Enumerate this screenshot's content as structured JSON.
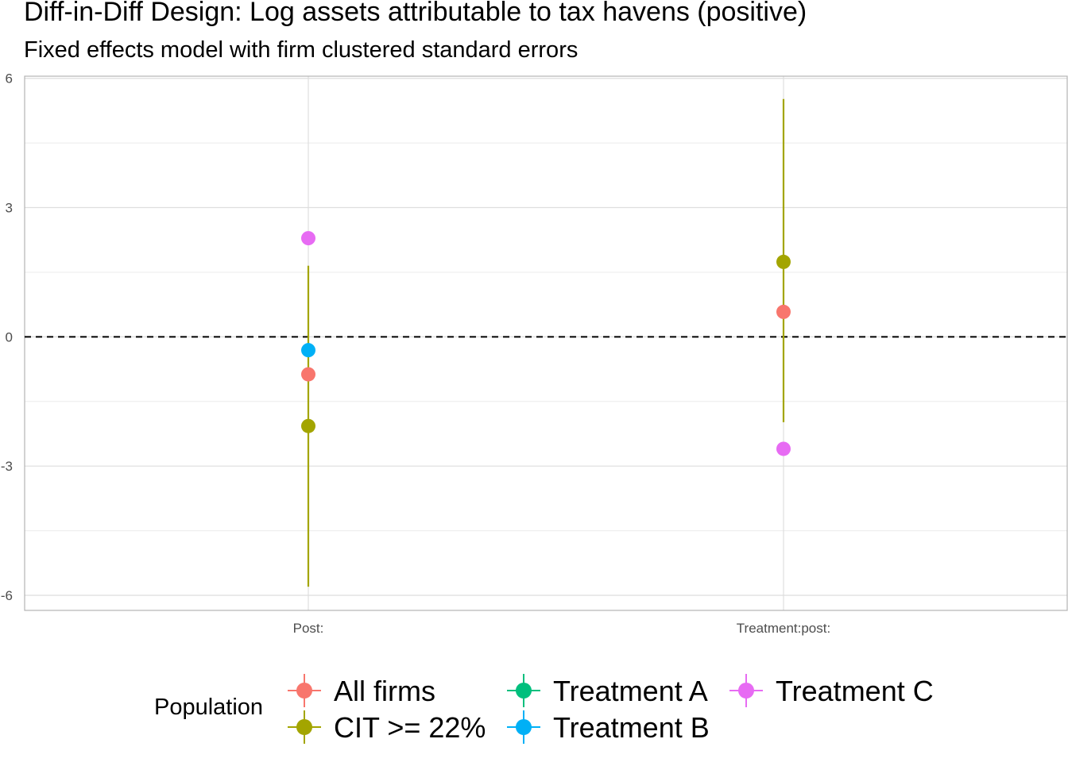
{
  "chart_data": {
    "type": "scatter",
    "title": "Diff-in-Diff Design: Log assets attributable to tax havens (positive)",
    "subtitle": "Fixed effects model with firm clustered standard errors",
    "xlabel": "",
    "ylabel": "",
    "categories": [
      "Post:",
      "Treatment:post:"
    ],
    "ylim": [
      -6.35,
      6.05
    ],
    "yticks": [
      -6,
      -3,
      0,
      3,
      6
    ],
    "ytick_labels": [
      "-6",
      "-3",
      "0",
      "3",
      "6"
    ],
    "reference_line": {
      "y": 0,
      "style": "dashed"
    },
    "grid": true,
    "legend": {
      "title": "Population",
      "position": "bottom"
    },
    "series": [
      {
        "name": "All firms",
        "color": "#F8766D",
        "points": [
          {
            "x": "Post:",
            "y": -0.87
          },
          {
            "x": "Treatment:post:",
            "y": 0.58
          }
        ]
      },
      {
        "name": "CIT >= 22%",
        "color": "#A3A500",
        "points": [
          {
            "x": "Post:",
            "y": -2.07,
            "lo": -5.8,
            "hi": 1.65
          },
          {
            "x": "Treatment:post:",
            "y": 1.74,
            "lo": -1.98,
            "hi": 5.52
          }
        ]
      },
      {
        "name": "Treatment A",
        "color": "#00BF7D",
        "points": []
      },
      {
        "name": "Treatment B",
        "color": "#00B0F6",
        "points": [
          {
            "x": "Post:",
            "y": -0.31
          }
        ]
      },
      {
        "name": "Treatment C",
        "color": "#E76BF3",
        "points": [
          {
            "x": "Post:",
            "y": 2.29
          },
          {
            "x": "Treatment:post:",
            "y": -2.6
          }
        ]
      }
    ]
  }
}
